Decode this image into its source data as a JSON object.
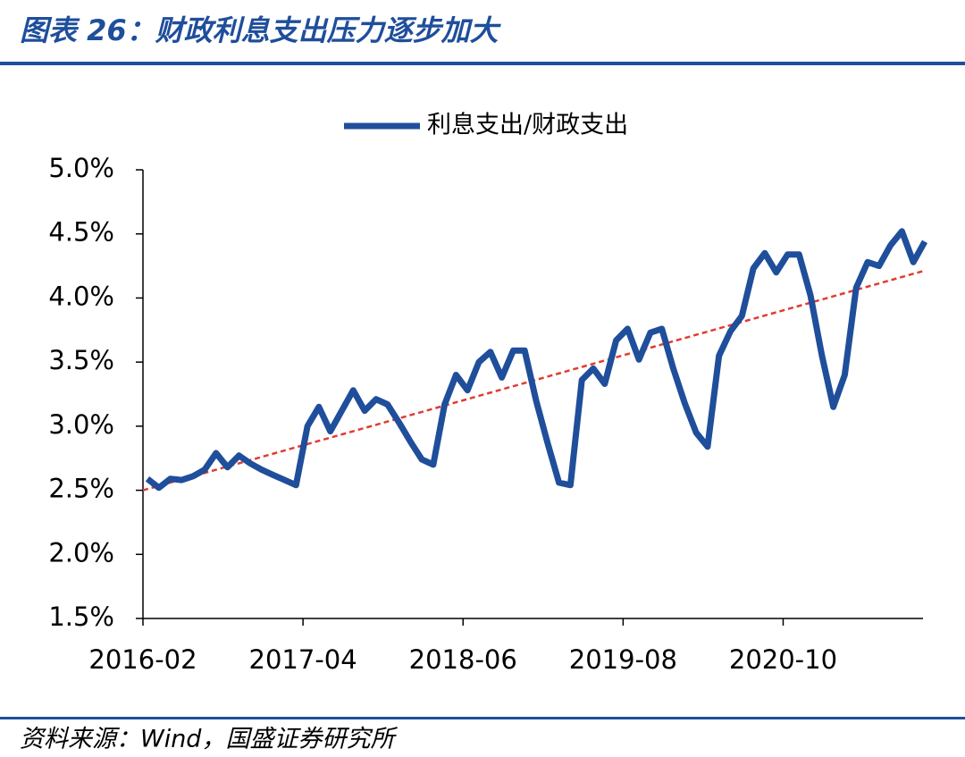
{
  "chart_data": {
    "type": "line",
    "title": "图表 26：财政利息支出压力逐步加大",
    "source": "资料来源：Wind，国盛证券研究所",
    "x": [
      "2016-02",
      "2016-03",
      "2016-04",
      "2016-05",
      "2016-06",
      "2016-07",
      "2016-08",
      "2016-09",
      "2016-10",
      "2016-11",
      "2016-12",
      "2017-01",
      "2017-02",
      "2017-03",
      "2017-04",
      "2017-05",
      "2017-06",
      "2017-07",
      "2017-08",
      "2017-09",
      "2017-10",
      "2017-11",
      "2017-12",
      "2018-01",
      "2018-02",
      "2018-03",
      "2018-04",
      "2018-05",
      "2018-06",
      "2018-07",
      "2018-08",
      "2018-09",
      "2018-10",
      "2018-11",
      "2018-12",
      "2019-01",
      "2019-02",
      "2019-03",
      "2019-04",
      "2019-05",
      "2019-06",
      "2019-07",
      "2019-08",
      "2019-09",
      "2019-10",
      "2019-11",
      "2019-12",
      "2020-01",
      "2020-02",
      "2020-03",
      "2020-04",
      "2020-05",
      "2020-06",
      "2020-07",
      "2020-08",
      "2020-09",
      "2020-10",
      "2020-11",
      "2020-12",
      "2021-01",
      "2021-02",
      "2021-03",
      "2021-04",
      "2021-05",
      "2021-06",
      "2021-07",
      "2021-08",
      "2021-09",
      "2021-10"
    ],
    "series": [
      {
        "name": "利息支出/财政支出",
        "color": "#1f4e9b",
        "values": [
          2.59,
          2.52,
          2.59,
          2.58,
          2.61,
          2.66,
          2.79,
          2.68,
          2.77,
          2.71,
          2.66,
          2.62,
          2.58,
          2.54,
          3.0,
          3.15,
          2.96,
          3.12,
          3.28,
          3.12,
          3.21,
          3.17,
          3.03,
          2.88,
          2.74,
          2.7,
          3.17,
          3.4,
          3.28,
          3.5,
          3.58,
          3.38,
          3.59,
          3.59,
          3.2,
          2.87,
          2.56,
          2.54,
          3.36,
          3.45,
          3.33,
          3.67,
          3.76,
          3.52,
          3.73,
          3.76,
          3.45,
          3.18,
          2.95,
          2.84,
          3.55,
          3.74,
          3.86,
          4.23,
          4.35,
          4.2,
          4.34,
          4.34,
          4.02,
          3.55,
          3.15,
          3.4,
          4.08,
          4.28,
          4.25,
          4.41,
          4.52,
          4.28,
          4.44
        ]
      }
    ],
    "trendline": {
      "color": "#e03c31",
      "values": [
        2.5,
        4.21
      ]
    },
    "xticks": [
      "2016-02",
      "2017-04",
      "2018-06",
      "2019-08",
      "2020-10"
    ],
    "ylim": [
      1.5,
      5.0
    ],
    "yticks": [
      {
        "value": 1.5,
        "label": "1.5%"
      },
      {
        "value": 2.0,
        "label": "2.0%"
      },
      {
        "value": 2.5,
        "label": "2.5%"
      },
      {
        "value": 3.0,
        "label": "3.0%"
      },
      {
        "value": 3.5,
        "label": "3.5%"
      },
      {
        "value": 4.0,
        "label": "4.0%"
      },
      {
        "value": 4.5,
        "label": "4.5%"
      },
      {
        "value": 5.0,
        "label": "5.0%"
      }
    ],
    "legend": "top"
  }
}
